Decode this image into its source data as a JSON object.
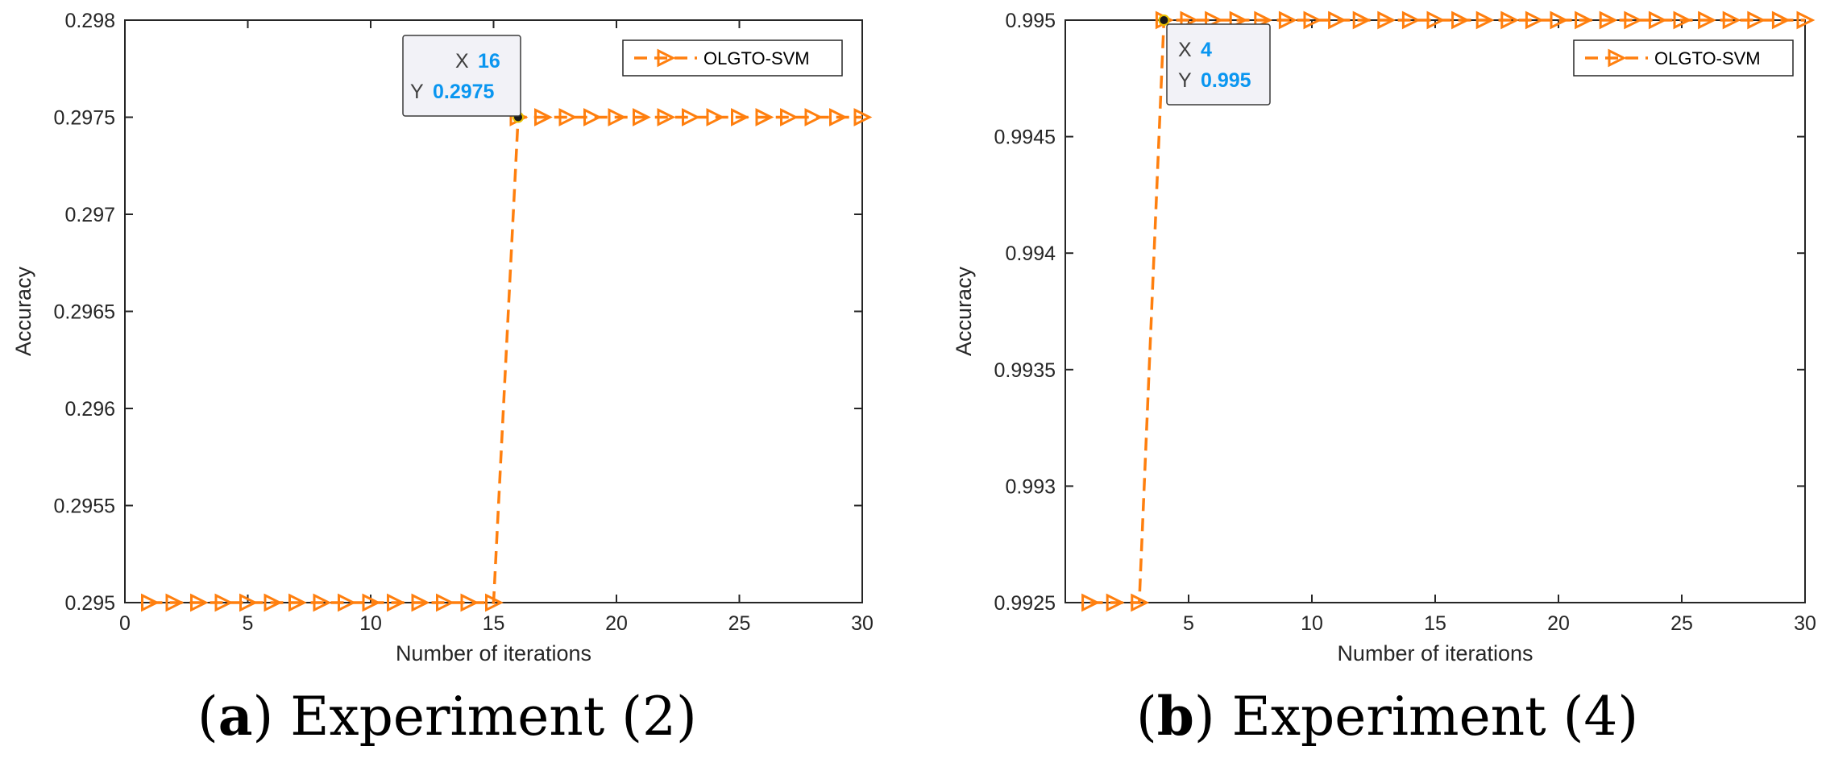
{
  "chart_data": [
    {
      "type": "line",
      "caption": {
        "letter": "a",
        "text": "Experiment (2)"
      },
      "xlabel": "Number of iterations",
      "ylabel": "Accuracy",
      "xlim": [
        0,
        30
      ],
      "ylim": [
        0.295,
        0.298
      ],
      "xticks": [
        0,
        5,
        10,
        15,
        20,
        25,
        30
      ],
      "xtick_labels": [
        "0",
        "5",
        "10",
        "15",
        "20",
        "25",
        "30"
      ],
      "yticks": [
        0.295,
        0.2955,
        0.296,
        0.2965,
        0.297,
        0.2975,
        0.298
      ],
      "ytick_labels": [
        "0.295",
        "0.2955",
        "0.296",
        "0.2965",
        "0.297",
        "0.2975",
        "0.298"
      ],
      "grid": false,
      "legend_position": "top-right",
      "series": [
        {
          "name": "OLGTO-SVM",
          "color": "#ff7f0e",
          "line_style": "dashed",
          "marker": "triangle-right",
          "x": [
            1,
            2,
            3,
            4,
            5,
            6,
            7,
            8,
            9,
            10,
            11,
            12,
            13,
            14,
            15,
            16,
            17,
            18,
            19,
            20,
            21,
            22,
            23,
            24,
            25,
            26,
            27,
            28,
            29,
            30
          ],
          "y": [
            0.295,
            0.295,
            0.295,
            0.295,
            0.295,
            0.295,
            0.295,
            0.295,
            0.295,
            0.295,
            0.295,
            0.295,
            0.295,
            0.295,
            0.295,
            0.2975,
            0.2975,
            0.2975,
            0.2975,
            0.2975,
            0.2975,
            0.2975,
            0.2975,
            0.2975,
            0.2975,
            0.2975,
            0.2975,
            0.2975,
            0.2975,
            0.2975
          ]
        }
      ],
      "datatip": {
        "x_key": "X",
        "x_value": "16",
        "y_key": "Y",
        "y_value": "0.2975",
        "x": 16,
        "y": 0.2975
      }
    },
    {
      "type": "line",
      "caption": {
        "letter": "b",
        "text": "Experiment (4)"
      },
      "xlabel": "Number of iterations",
      "ylabel": "Accuracy",
      "xlim": [
        0,
        30
      ],
      "ylim": [
        0.9925,
        0.995
      ],
      "xticks": [
        5,
        10,
        15,
        20,
        25,
        30
      ],
      "xtick_labels": [
        "5",
        "10",
        "15",
        "20",
        "25",
        "30"
      ],
      "yticks": [
        0.9925,
        0.993,
        0.9935,
        0.994,
        0.9945,
        0.995
      ],
      "ytick_labels": [
        "0.9925",
        "0.993",
        "0.9935",
        "0.994",
        "0.9945",
        "0.995"
      ],
      "grid": false,
      "legend_position": "top-right",
      "series": [
        {
          "name": "OLGTO-SVM",
          "color": "#ff7f0e",
          "line_style": "dashed",
          "marker": "triangle-right",
          "x": [
            1,
            2,
            3,
            4,
            5,
            6,
            7,
            8,
            9,
            10,
            11,
            12,
            13,
            14,
            15,
            16,
            17,
            18,
            19,
            20,
            21,
            22,
            23,
            24,
            25,
            26,
            27,
            28,
            29,
            30
          ],
          "y": [
            0.9925,
            0.9925,
            0.9925,
            0.995,
            0.995,
            0.995,
            0.995,
            0.995,
            0.995,
            0.995,
            0.995,
            0.995,
            0.995,
            0.995,
            0.995,
            0.995,
            0.995,
            0.995,
            0.995,
            0.995,
            0.995,
            0.995,
            0.995,
            0.995,
            0.995,
            0.995,
            0.995,
            0.995,
            0.995,
            0.995
          ]
        }
      ],
      "datatip": {
        "x_key": "X",
        "x_value": "4",
        "y_key": "Y",
        "y_value": "0.995",
        "x": 4,
        "y": 0.995
      }
    }
  ]
}
